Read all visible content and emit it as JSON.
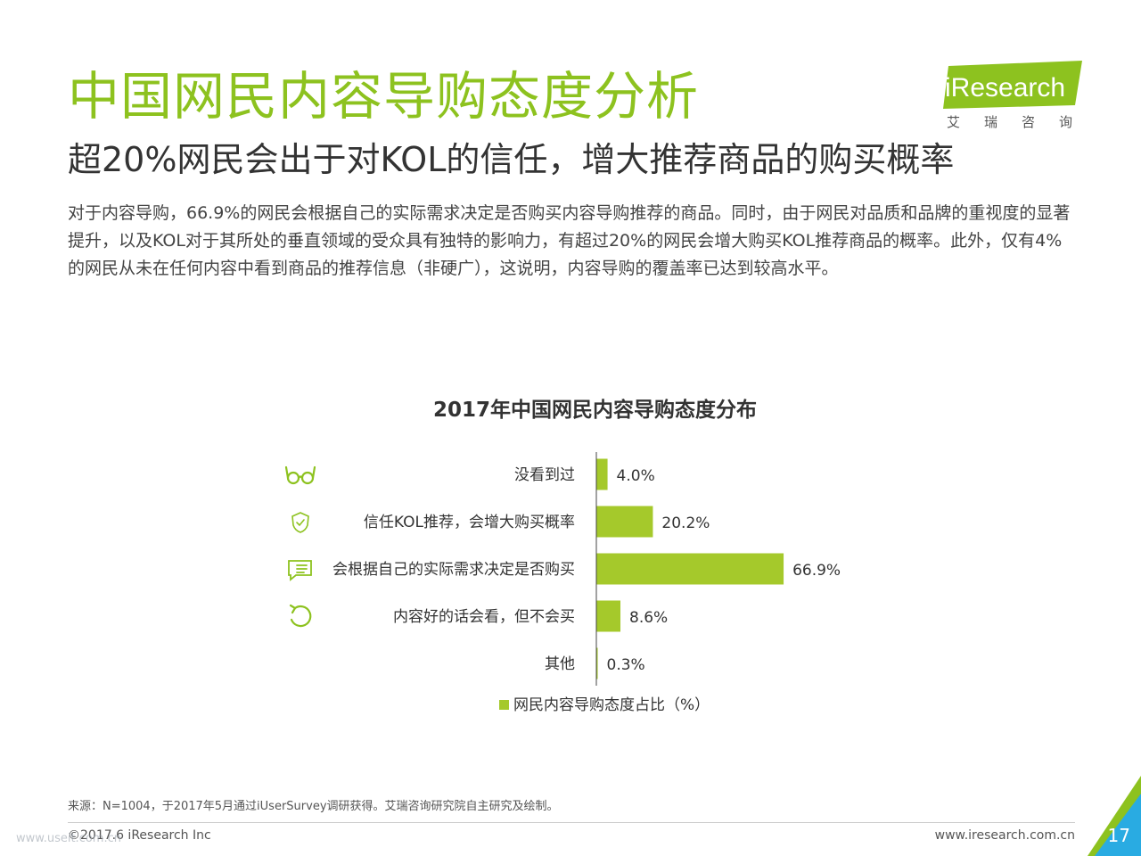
{
  "header": {
    "title": "中国网民内容导购态度分析",
    "subtitle": "超20%网民会出于对KOL的信任，增大推荐商品的购买概率",
    "body": "对于内容导购，66.9%的网民会根据自己的实际需求决定是否购买内容导购推荐的商品。同时，由于网民对品质和品牌的重视度的显著提升，以及KOL对于其所处的垂直领域的受众具有独特的影响力，有超过20%的网民会增大购买KOL推荐商品的概率。此外，仅有4%的网民从未在任何内容中看到商品的推荐信息（非硬广），这说明，内容导购的覆盖率已达到较高水平。"
  },
  "logo": {
    "brand": "iResearch",
    "chinese": "艾瑞咨询"
  },
  "chart_data": {
    "type": "bar",
    "orientation": "horizontal",
    "title": "2017年中国网民内容导购态度分布",
    "categories": [
      "没看到过",
      "信任KOL推荐，会增大购买概率",
      "会根据自己的实际需求决定是否购买",
      "内容好的话会看，但不会买",
      "其他"
    ],
    "series": [
      {
        "name": "网民内容导购态度占比（%）",
        "values": [
          4.0,
          20.2,
          66.9,
          8.6,
          0.3
        ]
      }
    ],
    "value_labels": [
      "4.0%",
      "20.2%",
      "66.9%",
      "8.6%",
      "0.3%"
    ],
    "icons": [
      "glasses-icon",
      "shield-check-icon",
      "chat-list-icon",
      "refresh-icon",
      ""
    ],
    "xlim": [
      0,
      70
    ],
    "legend_position": "bottom",
    "grid": false,
    "bar_color": "#a5c92b",
    "icon_color": "#8dc21f"
  },
  "footer": {
    "source": "来源：N=1004，于2017年5月通过iUserSurvey调研获得。艾瑞咨询研究院自主研究及绘制。",
    "copyright": "©2017.6 iResearch Inc",
    "website": "www.iresearch.com.cn",
    "page_number": "17",
    "watermark": "www.useit.com.cn"
  },
  "colors": {
    "accent": "#8dc21f",
    "corner_blue": "#29abe2",
    "corner_green": "#8dc21f"
  }
}
